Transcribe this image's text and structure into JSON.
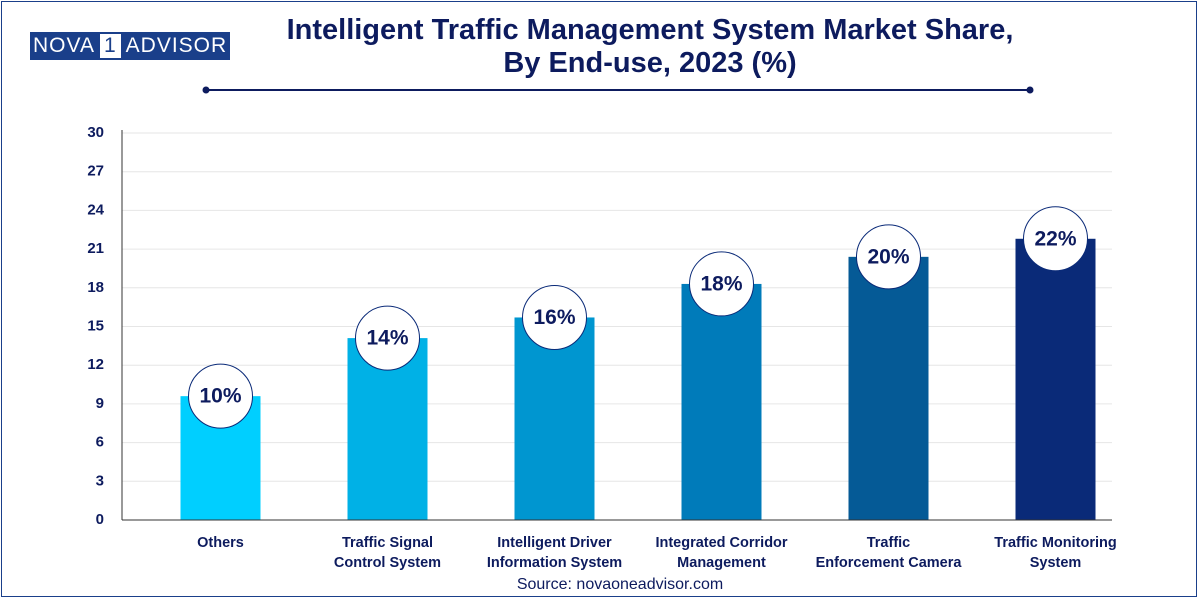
{
  "logo": [
    "NOVA",
    "1",
    "ADVISOR"
  ],
  "chart_data": {
    "type": "bar",
    "title": "Intelligent Traffic Management System Market Share,\nBy End-use, 2023 (%)",
    "categories": [
      "Others",
      "Traffic Signal\nControl System",
      "Intelligent Driver\nInformation System",
      "Integrated Corridor\nManagement",
      "Traffic\nEnforcement Camera",
      "Traffic Monitoring\nSystem"
    ],
    "values": [
      9.6,
      14.1,
      15.7,
      18.3,
      20.4,
      21.8
    ],
    "value_labels": [
      "10%",
      "14%",
      "16%",
      "18%",
      "20%",
      "22%"
    ],
    "colors": [
      "#00cfff",
      "#00b1e6",
      "#0096d0",
      "#007bba",
      "#055a96",
      "#0a2a78"
    ],
    "ylim": [
      0,
      30
    ],
    "yticks": [
      0,
      3,
      6,
      9,
      12,
      15,
      18,
      21,
      24,
      27,
      30
    ],
    "grid": true,
    "source": "Source: novaoneadvisor.com"
  }
}
